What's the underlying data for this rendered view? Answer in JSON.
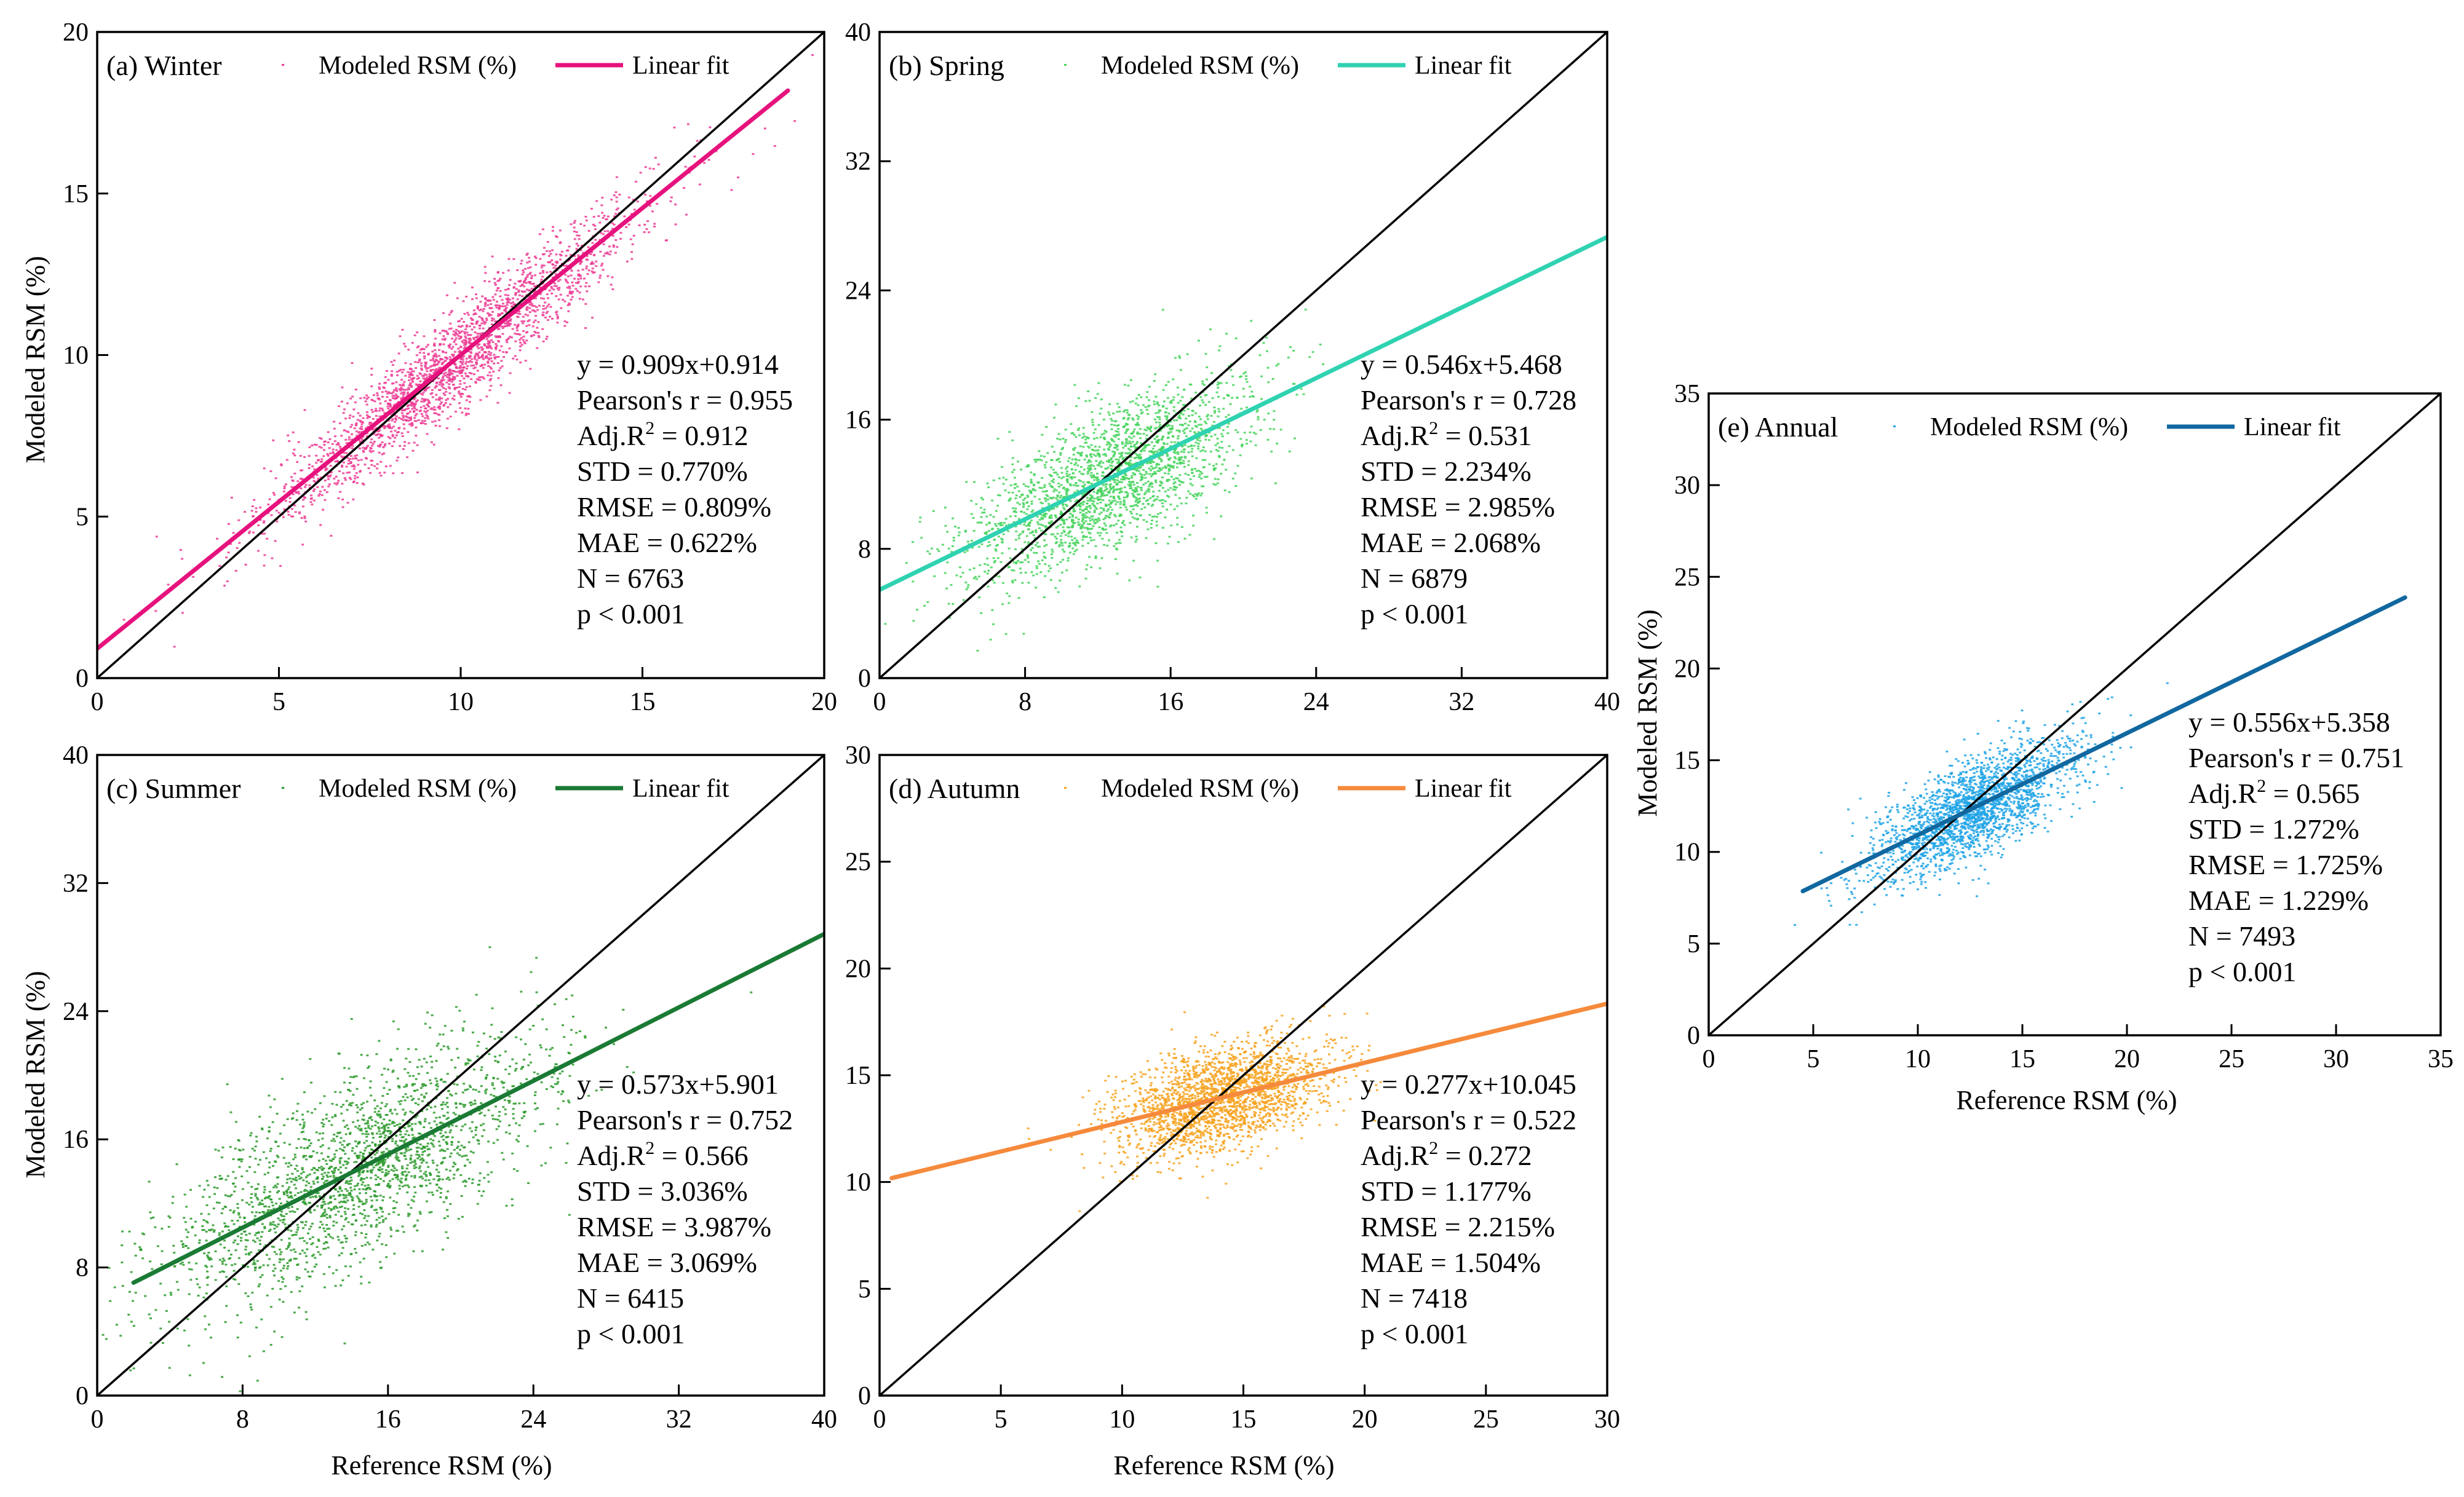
{
  "figure": {
    "background": "#ffffff"
  },
  "chart_data": [
    {
      "id": "a",
      "type": "scatter",
      "title": "(a) Winter",
      "xlabel": "",
      "ylabel": "Modeled RSM (%)",
      "xlim": [
        0,
        20
      ],
      "ylim": [
        0,
        20
      ],
      "xticks": [
        0,
        5,
        10,
        15,
        20
      ],
      "yticks": [
        0,
        5,
        10,
        15,
        20
      ],
      "legend": {
        "scatter_label": "Modeled RSM (%)",
        "line_label": "Linear fit",
        "position": "top"
      },
      "color": "#ec3b94",
      "line_color": "#e6127d",
      "fit": {
        "slope": 0.909,
        "intercept": 0.914,
        "x_range": [
          0,
          19
        ]
      },
      "reference_line": {
        "x": [
          0,
          20
        ],
        "y": [
          0,
          20
        ]
      },
      "cloud": {
        "center": [
          9.8,
          9.8
        ],
        "spread_x": 2.6,
        "spread_y": 0.77,
        "n_drawn": 2200
      },
      "stats": {
        "equation": "y = 0.909x+0.914",
        "pearson": "Pearson's r = 0.955",
        "adj_r2_prefix": "Adj.R",
        "adj_r2_sup": "2",
        "adj_r2_value": " = 0.912",
        "std": "STD = 0.770%",
        "rmse": "RMSE = 0.809%",
        "mae": "MAE = 0.622%",
        "n": "N = 6763",
        "p": "p < 0.001"
      }
    },
    {
      "id": "b",
      "type": "scatter",
      "title": "(b) Spring",
      "xlabel": "",
      "ylabel": "",
      "xlim": [
        0,
        40
      ],
      "ylim": [
        0,
        40
      ],
      "xticks": [
        0,
        8,
        16,
        24,
        32,
        40
      ],
      "yticks": [
        0,
        8,
        16,
        24,
        32,
        40
      ],
      "legend": {
        "scatter_label": "Modeled RSM (%)",
        "line_label": "Linear fit",
        "position": "top"
      },
      "color": "#45d45c",
      "line_color": "#2fd2b1",
      "fit": {
        "slope": 0.546,
        "intercept": 5.468,
        "x_range": [
          0,
          40
        ]
      },
      "reference_line": {
        "x": [
          0,
          40
        ],
        "y": [
          0,
          40
        ]
      },
      "cloud": {
        "center": [
          12.5,
          12.3
        ],
        "spread_x": 4.0,
        "spread_y": 2.2,
        "n_drawn": 2200
      },
      "stats": {
        "equation": "y = 0.546x+5.468",
        "pearson": "Pearson's r = 0.728",
        "adj_r2_prefix": "Adj.R",
        "adj_r2_sup": "2",
        "adj_r2_value": " = 0.531",
        "std": "STD = 2.234%",
        "rmse": "RMSE = 2.985%",
        "mae": "MAE = 2.068%",
        "n": "N = 6879",
        "p": "p < 0.001"
      }
    },
    {
      "id": "c",
      "type": "scatter",
      "title": "(c) Summer",
      "xlabel": "Reference  RSM (%)",
      "ylabel": "Modeled RSM (%)",
      "xlim": [
        0,
        40
      ],
      "ylim": [
        0,
        40
      ],
      "xticks": [
        0,
        8,
        16,
        24,
        32,
        40
      ],
      "yticks": [
        0,
        8,
        16,
        24,
        32,
        40
      ],
      "legend": {
        "scatter_label": "Modeled RSM (%)",
        "line_label": "Linear fit",
        "position": "top"
      },
      "color": "#2a9a2a",
      "line_color": "#1a7a34",
      "fit": {
        "slope": 0.573,
        "intercept": 5.901,
        "x_range": [
          2,
          40
        ]
      },
      "reference_line": {
        "x": [
          0,
          40
        ],
        "y": [
          0,
          40
        ]
      },
      "cloud": {
        "center": [
          14.2,
          14.0
        ],
        "spread_x": 5.3,
        "spread_y": 3.0,
        "n_drawn": 2200
      },
      "stats": {
        "equation": "y = 0.573x+5.901",
        "pearson": "Pearson's r = 0.752",
        "adj_r2_prefix": "Adj.R",
        "adj_r2_sup": "2",
        "adj_r2_value": " = 0.566",
        "std": "STD = 3.036%",
        "rmse": "RMSE = 3.987%",
        "mae": "MAE = 3.069%",
        "n": "N = 6415",
        "p": "p < 0.001"
      }
    },
    {
      "id": "d",
      "type": "scatter",
      "title": "(d) Autumn",
      "xlabel": "Reference  RSM (%)",
      "ylabel": "",
      "xlim": [
        0,
        30
      ],
      "ylim": [
        0,
        30
      ],
      "xticks": [
        0,
        5,
        10,
        15,
        20,
        25,
        30
      ],
      "yticks": [
        0,
        5,
        10,
        15,
        20,
        25,
        30
      ],
      "legend": {
        "scatter_label": "Modeled RSM (%)",
        "line_label": "Linear fit",
        "position": "top"
      },
      "color": "#f7a21e",
      "line_color": "#f58a3c",
      "fit": {
        "slope": 0.277,
        "intercept": 10.045,
        "x_range": [
          0.5,
          30
        ]
      },
      "reference_line": {
        "x": [
          0,
          30
        ],
        "y": [
          0,
          30
        ]
      },
      "cloud": {
        "center": [
          14.0,
          13.9
        ],
        "spread_x": 2.2,
        "spread_y": 1.2,
        "n_drawn": 2200
      },
      "stats": {
        "equation": "y = 0.277x+10.045",
        "pearson": "Pearson's r = 0.522",
        "adj_r2_prefix": "Adj.R",
        "adj_r2_sup": "2",
        "adj_r2_value": " = 0.272",
        "std": "STD = 1.177%",
        "rmse": "RMSE = 2.215%",
        "mae": "MAE = 1.504%",
        "n": "N = 7418",
        "p": "p < 0.001"
      }
    },
    {
      "id": "e",
      "type": "scatter",
      "title": "(e) Annual",
      "xlabel": "Reference  RSM (%)",
      "ylabel": "Modeled RSM (%)",
      "xlim": [
        0,
        35
      ],
      "ylim": [
        0,
        35
      ],
      "xticks": [
        0,
        5,
        10,
        15,
        20,
        25,
        30,
        35
      ],
      "yticks": [
        0,
        5,
        10,
        15,
        20,
        25,
        30,
        35
      ],
      "legend": {
        "scatter_label": "Modeled RSM (%)",
        "line_label": "Linear fit",
        "position": "top"
      },
      "color": "#1ea3e6",
      "line_color": "#11679f",
      "fit": {
        "slope": 0.556,
        "intercept": 5.358,
        "x_range": [
          4.5,
          33.3
        ]
      },
      "reference_line": {
        "x": [
          0,
          35
        ],
        "y": [
          0,
          35
        ]
      },
      "cloud": {
        "center": [
          12.6,
          12.4
        ],
        "spread_x": 2.4,
        "spread_y": 1.3,
        "n_drawn": 2200
      },
      "stats": {
        "equation": "y = 0.556x+5.358",
        "pearson": "Pearson's r = 0.751",
        "adj_r2_prefix": "Adj.R",
        "adj_r2_sup": "2",
        "adj_r2_value": " = 0.565",
        "std": "STD = 1.272%",
        "rmse": "RMSE = 1.725%",
        "mae": "MAE = 1.229%",
        "n": "N = 7493",
        "p": "p < 0.001"
      }
    }
  ]
}
